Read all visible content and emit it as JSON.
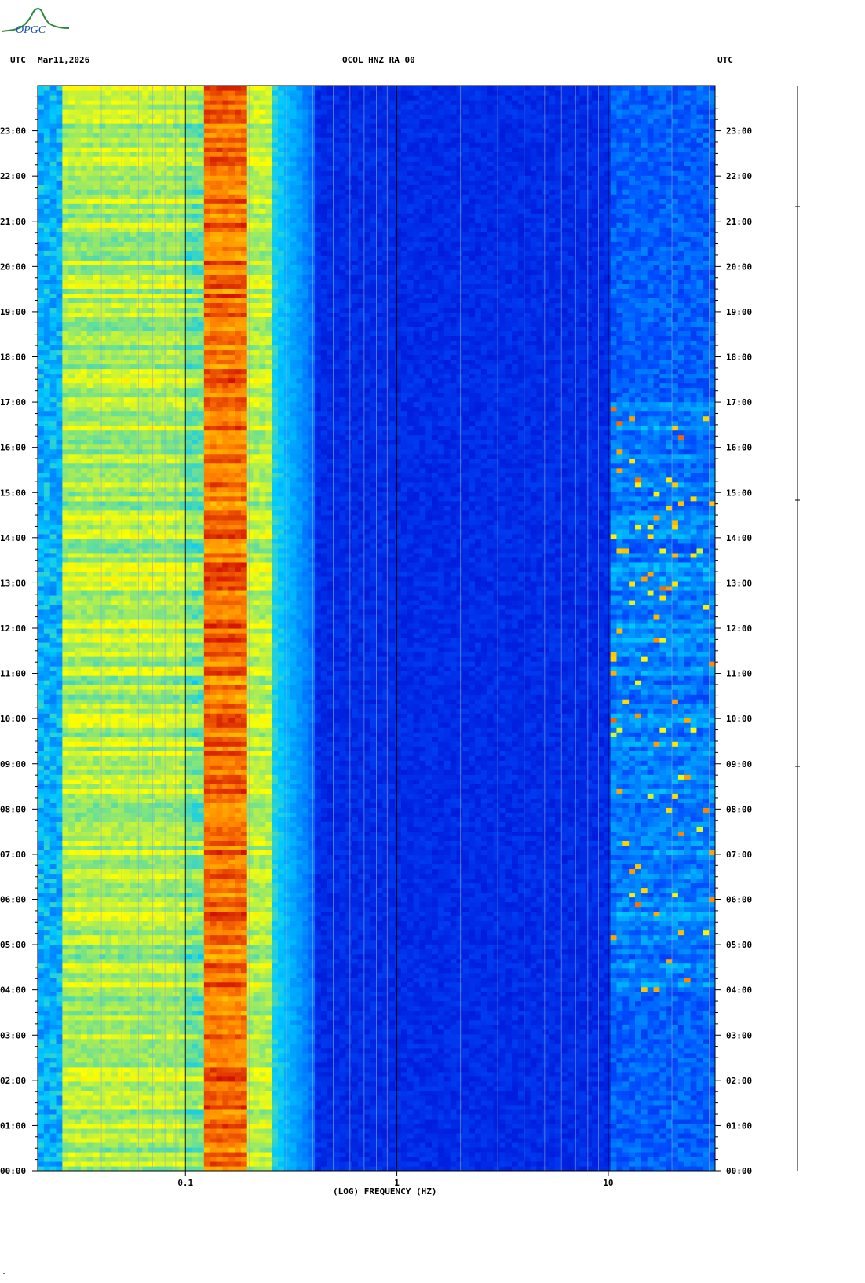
{
  "header": {
    "left_zone": "UTC",
    "date": "Mar11,2026",
    "station": "OCOL HNZ RA 00",
    "right_zone": "UTC"
  },
  "logo": {
    "text": "OPGC"
  },
  "corner_mark": "\"",
  "chart_data": {
    "type": "heatmap",
    "title": "OCOL HNZ RA 00",
    "xlabel": "(LOG) FREQUENCY (HZ)",
    "x_scale": "log",
    "xlim": [
      0.02,
      32
    ],
    "x_ticks": [
      0.1,
      1,
      10
    ],
    "x_tick_labels": [
      "0.1",
      "1",
      "10"
    ],
    "ylabel": "UTC",
    "ylim_hours": [
      0,
      24
    ],
    "y_tick_labels": [
      "00:00",
      "01:00",
      "02:00",
      "03:00",
      "04:00",
      "05:00",
      "06:00",
      "07:00",
      "08:00",
      "09:00",
      "10:00",
      "11:00",
      "12:00",
      "13:00",
      "14:00",
      "15:00",
      "16:00",
      "17:00",
      "18:00",
      "19:00",
      "20:00",
      "21:00",
      "22:00",
      "23:00"
    ],
    "colormap": [
      "#0000c8",
      "#0050ff",
      "#00c8ff",
      "#ffff00",
      "#ff8000",
      "#c80000"
    ],
    "energy_bands": [
      {
        "freq_range_hz": [
          0.02,
          0.1
        ],
        "level": "medium"
      },
      {
        "freq_range_hz": [
          0.12,
          0.2
        ],
        "level": "high"
      },
      {
        "freq_range_hz": [
          0.2,
          0.4
        ],
        "level": "low-medium"
      },
      {
        "freq_range_hz": [
          0.4,
          10
        ],
        "level": "low"
      },
      {
        "freq_range_hz": [
          10,
          32
        ],
        "level": "low, bursts 04:00-17:00"
      }
    ],
    "grid": true
  }
}
